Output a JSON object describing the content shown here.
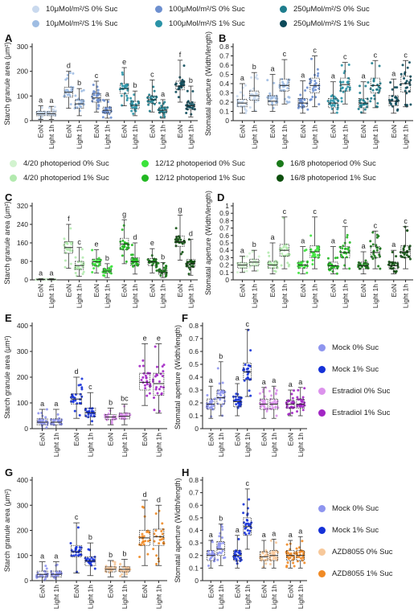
{
  "legends": {
    "sucrose_light": [
      {
        "label": "10μMol/m²/S 0% Suc",
        "color": "#c9d9ee"
      },
      {
        "label": "100μMol/m²/S 0% Suc",
        "color": "#6d8fcf"
      },
      {
        "label": "250μMol/m²/S 0% Suc",
        "color": "#1e7d8d"
      },
      {
        "label": "10μMol/m²/S 1% Suc",
        "color": "#9fbde3"
      },
      {
        "label": "100μMol/m²/S 1% Suc",
        "color": "#2a93a7"
      },
      {
        "label": "250μMol/m²/S 1% Suc",
        "color": "#0c4a5a"
      }
    ],
    "photoperiod": [
      {
        "label": "4/20 photoperiod 0% Suc",
        "color": "#d2f3cf"
      },
      {
        "label": "12/12 photoperiod 0% Suc",
        "color": "#3be33b"
      },
      {
        "label": "16/8 photoperiod 0% Suc",
        "color": "#1a7a1a"
      },
      {
        "label": "4/20 photoperiod 1% Suc",
        "color": "#b2eaae"
      },
      {
        "label": "12/12 photoperiod 1% Suc",
        "color": "#22b822"
      },
      {
        "label": "16/8 photoperiod 1% Suc",
        "color": "#0d4f0d"
      }
    ],
    "estradiol": [
      {
        "label": "Mock 0% Suc",
        "color": "#8e95ef"
      },
      {
        "label": "Mock 1% Suc",
        "color": "#1531d8"
      },
      {
        "label": "Estradiol 0% Suc",
        "color": "#dc92ec"
      },
      {
        "label": "Estradiol 1% Suc",
        "color": "#a226c4"
      }
    ],
    "azd": [
      {
        "label": "Mock 0% Suc",
        "color": "#8e95ef"
      },
      {
        "label": "Mock 1% Suc",
        "color": "#1531d8"
      },
      {
        "label": "AZD8055 0% Suc",
        "color": "#f7c89a"
      },
      {
        "label": "AZD8055 1% Suc",
        "color": "#f08a25"
      }
    ]
  },
  "chart_data": [
    {
      "panel": "A",
      "type": "box",
      "ylabel": "Starch granule area (μm²)",
      "ylim": [
        0,
        300
      ],
      "yticks": [
        0,
        100,
        200,
        300
      ],
      "categories": [
        "EoN",
        "Light 1h",
        "EoN",
        "Light 1h",
        "EoN",
        "Light 1h",
        "EoN",
        "Light 1h",
        "EoN",
        "Light 1h",
        "EoN",
        "Light 1h"
      ],
      "colors": [
        "#c9d9ee",
        "#c9d9ee",
        "#9fbde3",
        "#9fbde3",
        "#6d8fcf",
        "#6d8fcf",
        "#2a93a7",
        "#2a93a7",
        "#1e7d8d",
        "#1e7d8d",
        "#0c4a5a",
        "#0c4a5a"
      ],
      "letters": [
        "a",
        "a",
        "d",
        "b",
        "c",
        "a",
        "e",
        "b",
        "c",
        "a",
        "f",
        "b"
      ],
      "box": [
        [
          5,
          20,
          28,
          38,
          60
        ],
        [
          5,
          20,
          28,
          36,
          58
        ],
        [
          50,
          95,
          115,
          135,
          200
        ],
        [
          20,
          50,
          68,
          85,
          130
        ],
        [
          35,
          75,
          92,
          110,
          160
        ],
        [
          10,
          32,
          42,
          55,
          85
        ],
        [
          60,
          110,
          130,
          150,
          215
        ],
        [
          20,
          48,
          62,
          78,
          120
        ],
        [
          35,
          70,
          85,
          100,
          165
        ],
        [
          10,
          32,
          42,
          55,
          85
        ],
        [
          75,
          125,
          140,
          160,
          245
        ],
        [
          15,
          45,
          60,
          75,
          140
        ]
      ]
    },
    {
      "panel": "B",
      "type": "box",
      "ylabel": "Stomatal aperture (Width/length)",
      "ylim": [
        0,
        0.8
      ],
      "yticks": [
        0,
        0.1,
        0.2,
        0.3,
        0.4,
        0.5,
        0.6,
        0.7,
        0.8
      ],
      "categories": [
        "EoN",
        "Light 1h",
        "EoN",
        "Light 1h",
        "EoN",
        "Light 1h",
        "EoN",
        "Light 1h",
        "EoN",
        "Light 1h",
        "EoN",
        "Light 1h"
      ],
      "colors": [
        "#c9d9ee",
        "#c9d9ee",
        "#9fbde3",
        "#9fbde3",
        "#6d8fcf",
        "#6d8fcf",
        "#2a93a7",
        "#2a93a7",
        "#1e7d8d",
        "#1e7d8d",
        "#0c4a5a",
        "#0c4a5a"
      ],
      "letters": [
        "a",
        "b",
        "a",
        "c",
        "a",
        "c",
        "a",
        "c",
        "a",
        "c",
        "a",
        "c"
      ],
      "box": [
        [
          0.08,
          0.15,
          0.19,
          0.23,
          0.4
        ],
        [
          0.1,
          0.22,
          0.27,
          0.32,
          0.52
        ],
        [
          0.1,
          0.17,
          0.21,
          0.27,
          0.5
        ],
        [
          0.18,
          0.32,
          0.38,
          0.45,
          0.66
        ],
        [
          0.08,
          0.15,
          0.19,
          0.24,
          0.43
        ],
        [
          0.15,
          0.3,
          0.38,
          0.46,
          0.7
        ],
        [
          0.08,
          0.14,
          0.19,
          0.24,
          0.42
        ],
        [
          0.18,
          0.32,
          0.39,
          0.46,
          0.63
        ],
        [
          0.08,
          0.14,
          0.19,
          0.24,
          0.42
        ],
        [
          0.14,
          0.3,
          0.38,
          0.46,
          0.65
        ],
        [
          0.08,
          0.16,
          0.21,
          0.27,
          0.45
        ],
        [
          0.15,
          0.31,
          0.4,
          0.48,
          0.65
        ]
      ]
    },
    {
      "panel": "C",
      "type": "box",
      "ylabel": "Starch granule area (μm²)",
      "ylim": [
        0,
        320
      ],
      "yticks": [
        0,
        80,
        160,
        240,
        320
      ],
      "categories": [
        "EoN",
        "Light 1h",
        "EoN",
        "Light 1h",
        "EoN",
        "Light 1h",
        "EoN",
        "Light 1h",
        "EoN",
        "Light 1h",
        "EoN",
        "Light 1h"
      ],
      "colors": [
        "#d2f3cf",
        "#d2f3cf",
        "#b2eaae",
        "#b2eaae",
        "#3be33b",
        "#3be33b",
        "#22b822",
        "#22b822",
        "#1a7a1a",
        "#1a7a1a",
        "#0d4f0d",
        "#0d4f0d"
      ],
      "letters": [
        "a",
        "a",
        "f",
        "c",
        "e",
        "b",
        "g",
        "d",
        "e",
        "b",
        "g",
        "d"
      ],
      "box": [
        [
          0,
          1,
          2,
          3,
          5
        ],
        [
          0,
          1,
          2,
          3,
          5
        ],
        [
          50,
          115,
          140,
          165,
          240
        ],
        [
          15,
          45,
          62,
          80,
          140
        ],
        [
          30,
          62,
          78,
          90,
          130
        ],
        [
          10,
          30,
          38,
          48,
          70
        ],
        [
          70,
          130,
          155,
          180,
          260
        ],
        [
          25,
          62,
          78,
          95,
          160
        ],
        [
          30,
          62,
          78,
          92,
          135
        ],
        [
          10,
          25,
          32,
          42,
          75
        ],
        [
          85,
          145,
          165,
          190,
          280
        ],
        [
          20,
          55,
          70,
          88,
          175
        ]
      ]
    },
    {
      "panel": "D",
      "type": "box",
      "ylabel": "Stomatal aperture (Width/length)",
      "ylim": [
        0,
        1.0
      ],
      "yticks": [
        0,
        0.1,
        0.2,
        0.3,
        0.4,
        0.5,
        0.6,
        0.7,
        0.8,
        0.9,
        1.0
      ],
      "categories": [
        "EoN",
        "Light 1h",
        "EoN",
        "Light 1h",
        "EoN",
        "Light 1h",
        "EoN",
        "Light 1h",
        "EoN",
        "Light 1h",
        "EoN",
        "Light 1h"
      ],
      "colors": [
        "#d2f3cf",
        "#d2f3cf",
        "#b2eaae",
        "#b2eaae",
        "#3be33b",
        "#3be33b",
        "#22b822",
        "#22b822",
        "#1a7a1a",
        "#1a7a1a",
        "#0d4f0d",
        "#0d4f0d"
      ],
      "letters": [
        "a",
        "b",
        "a",
        "c",
        "a",
        "c",
        "a",
        "c",
        "a",
        "c",
        "a",
        "c"
      ],
      "box": [
        [
          0.1,
          0.16,
          0.2,
          0.23,
          0.32
        ],
        [
          0.12,
          0.19,
          0.24,
          0.28,
          0.4
        ],
        [
          0.08,
          0.16,
          0.2,
          0.25,
          0.5
        ],
        [
          0.15,
          0.32,
          0.4,
          0.48,
          0.85
        ],
        [
          0.08,
          0.16,
          0.2,
          0.25,
          0.45
        ],
        [
          0.15,
          0.3,
          0.38,
          0.46,
          0.85
        ],
        [
          0.08,
          0.15,
          0.19,
          0.24,
          0.45
        ],
        [
          0.15,
          0.3,
          0.37,
          0.45,
          0.72
        ],
        [
          0.08,
          0.15,
          0.19,
          0.24,
          0.38
        ],
        [
          0.15,
          0.3,
          0.37,
          0.45,
          0.66
        ],
        [
          0.08,
          0.15,
          0.19,
          0.24,
          0.4
        ],
        [
          0.15,
          0.3,
          0.38,
          0.46,
          0.72
        ]
      ]
    },
    {
      "panel": "E",
      "type": "box",
      "ylabel": "Starch granule area (μm²)",
      "ylim": [
        0,
        400
      ],
      "yticks": [
        0,
        100,
        200,
        300,
        400
      ],
      "categories": [
        "EoN",
        "Light 1h",
        "EoN",
        "Light 1h",
        "EoN",
        "Light 1h",
        "EoN",
        "Light 1h"
      ],
      "colors": [
        "#8e95ef",
        "#8e95ef",
        "#1531d8",
        "#1531d8",
        "#dc92ec",
        "#dc92ec",
        "#a226c4",
        "#a226c4"
      ],
      "letters": [
        "a",
        "a",
        "d",
        "c",
        "b",
        "bc",
        "e",
        "e"
      ],
      "box": [
        [
          0,
          15,
          25,
          38,
          75
        ],
        [
          0,
          15,
          25,
          38,
          75
        ],
        [
          40,
          95,
          115,
          135,
          200
        ],
        [
          15,
          45,
          62,
          80,
          140
        ],
        [
          15,
          35,
          45,
          55,
          80
        ],
        [
          15,
          38,
          48,
          60,
          95
        ],
        [
          90,
          150,
          180,
          215,
          330
        ],
        [
          60,
          130,
          175,
          215,
          330
        ]
      ]
    },
    {
      "panel": "F",
      "type": "box",
      "ylabel": "Stomatal aperture (Width/length)",
      "ylim": [
        0,
        0.8
      ],
      "yticks": [
        0,
        0.1,
        0.2,
        0.3,
        0.4,
        0.5,
        0.6,
        0.7,
        0.8
      ],
      "categories": [
        "EoN",
        "Light 1h",
        "EoN",
        "Light 1h",
        "EoN",
        "Light 1h",
        "EoN",
        "Light 1h"
      ],
      "colors": [
        "#8e95ef",
        "#8e95ef",
        "#1531d8",
        "#1531d8",
        "#dc92ec",
        "#dc92ec",
        "#a226c4",
        "#a226c4"
      ],
      "letters": [
        "a",
        "b",
        "a",
        "c",
        "a",
        "a",
        "a",
        "a"
      ],
      "box": [
        [
          0.08,
          0.15,
          0.19,
          0.23,
          0.33
        ],
        [
          0.1,
          0.19,
          0.24,
          0.3,
          0.52
        ],
        [
          0.1,
          0.17,
          0.21,
          0.25,
          0.35
        ],
        [
          0.25,
          0.38,
          0.44,
          0.51,
          0.77
        ],
        [
          0.08,
          0.15,
          0.19,
          0.23,
          0.32
        ],
        [
          0.08,
          0.15,
          0.19,
          0.23,
          0.33
        ],
        [
          0.1,
          0.16,
          0.19,
          0.22,
          0.3
        ],
        [
          0.1,
          0.16,
          0.19,
          0.23,
          0.32
        ]
      ]
    },
    {
      "panel": "G",
      "type": "box",
      "ylabel": "Starch granule area (μm²)",
      "ylim": [
        0,
        400
      ],
      "yticks": [
        0,
        100,
        200,
        300,
        400
      ],
      "categories": [
        "EoN",
        "Light 1h",
        "EoN",
        "Light 1h",
        "EoN",
        "Light 1h",
        "EoN",
        "Light 1h"
      ],
      "colors": [
        "#8e95ef",
        "#8e95ef",
        "#1531d8",
        "#1531d8",
        "#f7c89a",
        "#f7c89a",
        "#f08a25",
        "#f08a25"
      ],
      "letters": [
        "a",
        "a",
        "c",
        "b",
        "b",
        "b",
        "d",
        "d"
      ],
      "box": [
        [
          0,
          15,
          25,
          38,
          75
        ],
        [
          0,
          15,
          25,
          38,
          75
        ],
        [
          30,
          95,
          115,
          140,
          230
        ],
        [
          20,
          60,
          78,
          95,
          150
        ],
        [
          15,
          35,
          45,
          55,
          80
        ],
        [
          15,
          35,
          45,
          55,
          85
        ],
        [
          60,
          140,
          170,
          200,
          320
        ],
        [
          60,
          140,
          175,
          205,
          300
        ]
      ]
    },
    {
      "panel": "H",
      "type": "box",
      "ylabel": "Stomatal aperture (Width/length)",
      "ylim": [
        0,
        0.8
      ],
      "yticks": [
        0,
        0.1,
        0.2,
        0.3,
        0.4,
        0.5,
        0.6,
        0.7,
        0.8
      ],
      "categories": [
        "EoN",
        "Light 1h",
        "EoN",
        "Light 1h",
        "EoN",
        "Light 1h",
        "EoN",
        "Light 1h"
      ],
      "colors": [
        "#8e95ef",
        "#8e95ef",
        "#1531d8",
        "#1531d8",
        "#f7c89a",
        "#f7c89a",
        "#f08a25",
        "#f08a25"
      ],
      "letters": [
        "a",
        "b",
        "a",
        "c",
        "a",
        "a",
        "a",
        "a"
      ],
      "box": [
        [
          0.1,
          0.16,
          0.2,
          0.24,
          0.32
        ],
        [
          0.12,
          0.2,
          0.25,
          0.31,
          0.45
        ],
        [
          0.1,
          0.16,
          0.2,
          0.24,
          0.36
        ],
        [
          0.25,
          0.36,
          0.43,
          0.5,
          0.73
        ],
        [
          0.1,
          0.16,
          0.19,
          0.23,
          0.32
        ],
        [
          0.1,
          0.16,
          0.2,
          0.24,
          0.33
        ],
        [
          0.1,
          0.16,
          0.2,
          0.24,
          0.32
        ],
        [
          0.1,
          0.16,
          0.2,
          0.24,
          0.35
        ]
      ]
    }
  ]
}
